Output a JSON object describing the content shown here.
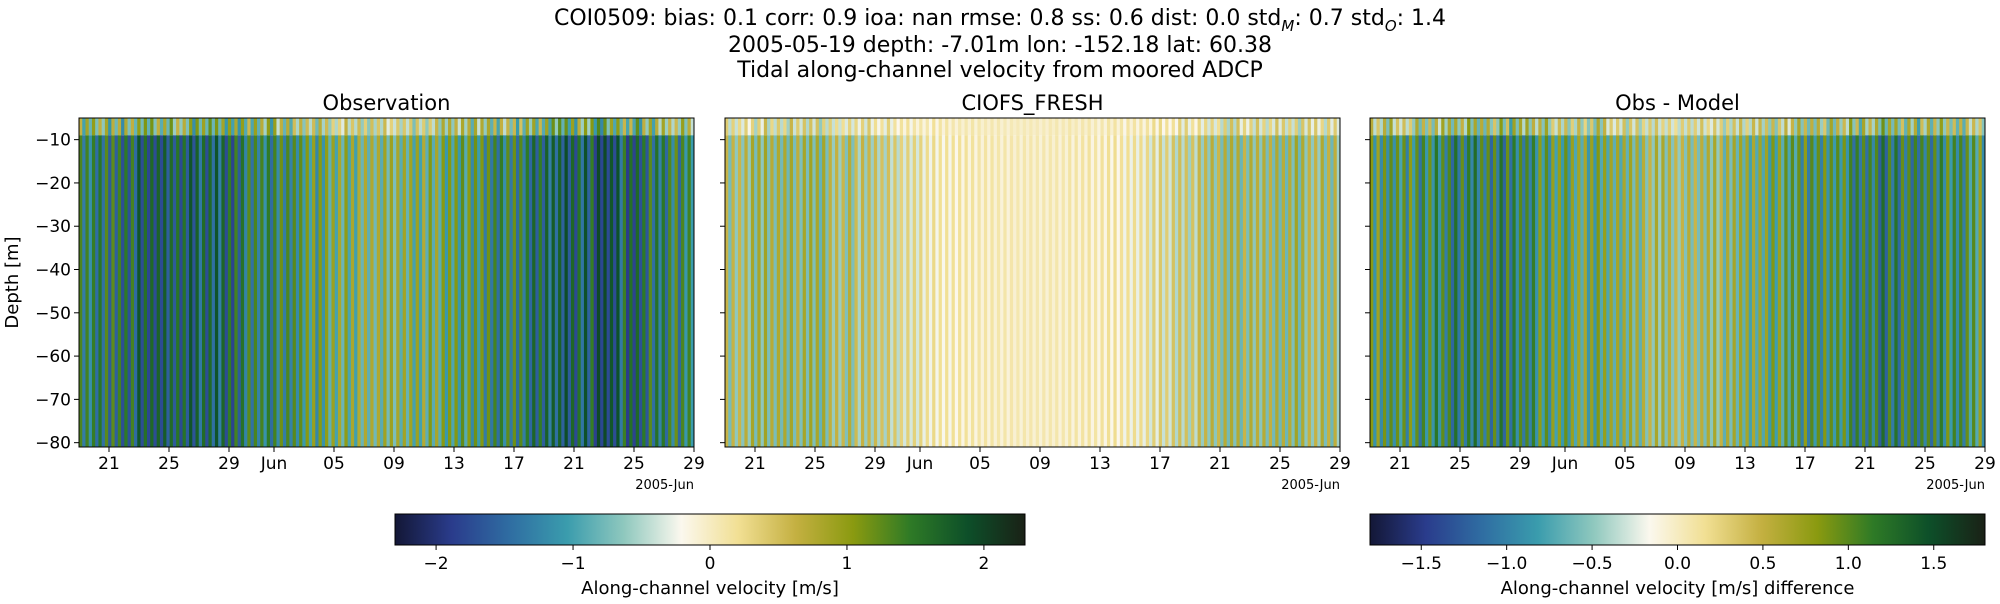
{
  "figure": {
    "title_line1": "COI0509: bias: 0.1  corr: 0.9  ioa: nan  rmse: 0.8  ss: 0.6  dist: 0.0  std",
    "title_line1_sub_m": "M",
    "title_line1_mid": ": 0.7  std",
    "title_line1_sub_o": "O",
    "title_line1_end": ": 1.4",
    "title_line2": "2005-05-19 depth: -7.01m lon: -152.18 lat: 60.38",
    "title_line3": "Tidal along-channel velocity from moored ADCP"
  },
  "chart_data": [
    {
      "type": "heatmap",
      "title": "Observation",
      "ylabel": "Depth [m]",
      "ylim": [
        -81,
        -5
      ],
      "yticks": [
        -10,
        -20,
        -30,
        -40,
        -50,
        -60,
        -70,
        -80
      ],
      "xticks": [
        "21",
        "25",
        "29",
        "Jun",
        "05",
        "09",
        "13",
        "17",
        "21",
        "25",
        "29"
      ],
      "x_offset_label": "2005-Jun",
      "x_range": [
        "2005-05-19",
        "2005-06-29"
      ],
      "colormap": "delta",
      "clim": [
        -2.3,
        2.3
      ],
      "dominant_values": "alternating tidal ebb/flood, |v| up to ~2 m/s"
    },
    {
      "type": "heatmap",
      "title": "CIOFS_FRESH",
      "ylim": [
        -81,
        -5
      ],
      "xticks": [
        "21",
        "25",
        "29",
        "Jun",
        "05",
        "09",
        "13",
        "17",
        "21",
        "25",
        "29"
      ],
      "x_offset_label": "2005-Jun",
      "x_range": [
        "2005-05-19",
        "2005-06-29"
      ],
      "colormap": "delta",
      "clim": [
        -2.3,
        2.3
      ],
      "dominant_values": "alternating tidal ebb/flood, |v| ~0.5-1 m/s"
    },
    {
      "type": "heatmap",
      "title": "Obs - Model",
      "ylim": [
        -81,
        -5
      ],
      "xticks": [
        "21",
        "25",
        "29",
        "Jun",
        "05",
        "09",
        "13",
        "17",
        "21",
        "25",
        "29"
      ],
      "x_offset_label": "2005-Jun",
      "x_range": [
        "2005-05-19",
        "2005-06-29"
      ],
      "colormap": "delta",
      "clim": [
        -1.8,
        1.8
      ],
      "dominant_values": "alternating differences, |dv| up to ~1.5 m/s"
    }
  ],
  "colorbars": [
    {
      "label": "Along-channel velocity [m/s]",
      "range": [
        -2.3,
        2.3
      ],
      "ticks": [
        {
          "value": -2,
          "label": "−2"
        },
        {
          "value": -1,
          "label": "−1"
        },
        {
          "value": 0,
          "label": "0"
        },
        {
          "value": 1,
          "label": "1"
        },
        {
          "value": 2,
          "label": "2"
        }
      ]
    },
    {
      "label": "Along-channel velocity [m/s] difference",
      "range": [
        -1.8,
        1.8
      ],
      "ticks": [
        {
          "value": -1.5,
          "label": "−1.5"
        },
        {
          "value": -1.0,
          "label": "−1.0"
        },
        {
          "value": -0.5,
          "label": "−0.5"
        },
        {
          "value": 0.0,
          "label": "0.0"
        },
        {
          "value": 0.5,
          "label": "0.5"
        },
        {
          "value": 1.0,
          "label": "1.0"
        },
        {
          "value": 1.5,
          "label": "1.5"
        }
      ]
    }
  ],
  "colors": {
    "cmap_stops": [
      "#131736",
      "#2a3c8c",
      "#2f6da2",
      "#3a9cad",
      "#8fc8be",
      "#fbf8ee",
      "#f1df93",
      "#c4b041",
      "#8a9a10",
      "#2e7a26",
      "#0d4f29",
      "#1a2116"
    ]
  }
}
